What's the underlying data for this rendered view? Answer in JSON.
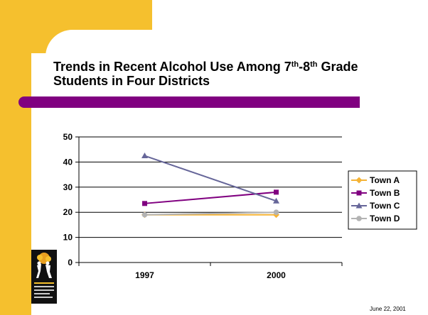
{
  "slide": {
    "title_part1": "Trends in Recent Alcohol Use Among 7",
    "title_sup1": "th",
    "title_part2": "-8",
    "title_sup2": "th",
    "title_part3": " Grade Students in Four Districts",
    "footer_date": "June 22, 2001",
    "logo_text": "ADOLESCENT PREVENTION & HEALTH"
  },
  "colors": {
    "accent_gold": "#F5C02E",
    "accent_purple": "#800080",
    "town_a": "#F5B335",
    "town_b": "#800080",
    "town_c": "#666699",
    "town_d": "#B3B3B3"
  },
  "chart_data": {
    "type": "line",
    "x": [
      "1997",
      "2000"
    ],
    "ylim": [
      0,
      50
    ],
    "yticks": [
      0,
      10,
      20,
      30,
      40,
      50
    ],
    "grid": true,
    "legend": "right",
    "series": [
      {
        "name": "Town A",
        "values": [
          19,
          19
        ],
        "color": "#F5B335",
        "marker": "diamond"
      },
      {
        "name": "Town B",
        "values": [
          23.5,
          28
        ],
        "color": "#800080",
        "marker": "square"
      },
      {
        "name": "Town C",
        "values": [
          42.5,
          24.5
        ],
        "color": "#666699",
        "marker": "triangle"
      },
      {
        "name": "Town D",
        "values": [
          19,
          20
        ],
        "color": "#B3B3B3",
        "marker": "circle"
      }
    ]
  }
}
